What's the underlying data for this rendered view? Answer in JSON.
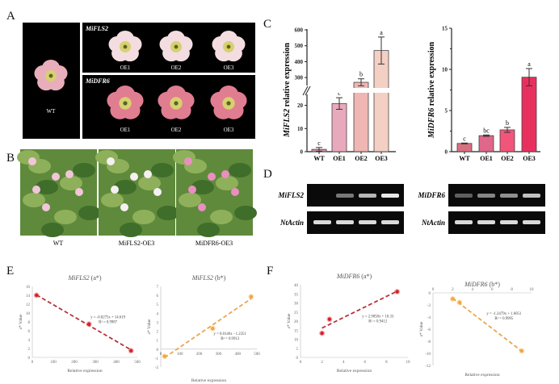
{
  "panels": {
    "A": "A",
    "B": "B",
    "C": "C",
    "D": "D",
    "E": "E",
    "F": "F"
  },
  "panel_a": {
    "wt_label": "WT",
    "fls2_title": "MiFLS2",
    "dfr6_title": "MiDFR6",
    "lines": [
      "OE1",
      "OE2",
      "OE3"
    ],
    "colors": {
      "fls2_petal": "#f3dde0",
      "dfr6_petal": "#e07d90",
      "wt_petal": "#e8aebb",
      "background": "#000000"
    }
  },
  "panel_b": {
    "labels": [
      "WT",
      "MiFLS2-OE3",
      "MiDFR6-OE3"
    ]
  },
  "panel_d": {
    "left": {
      "gene": "MiFLS2",
      "control": "NtActin",
      "band_strength": [
        0.0,
        0.45,
        0.7,
        0.9
      ]
    },
    "right": {
      "gene": "MiDFR6",
      "control": "NtActin",
      "band_strength": [
        0.35,
        0.5,
        0.55,
        0.75
      ]
    }
  },
  "chart_data": [
    {
      "id": "C-left",
      "type": "bar",
      "categories": [
        "WT",
        "OE1",
        "OE2",
        "OE3"
      ],
      "values": [
        1,
        20.8,
        270,
        470
      ],
      "errors": [
        0.8,
        2.5,
        22,
        85
      ],
      "letters": [
        "c",
        "c",
        "b",
        "a"
      ],
      "ylabel_gene": "MiFLS2",
      "ylabel_rest": " relative expression",
      "axis_break": true,
      "ylim_lower": [
        0,
        25
      ],
      "ylim_upper": [
        260,
        600
      ],
      "yticks_lower": [
        0,
        10,
        20
      ],
      "yticks_upper": [
        300,
        400,
        500,
        600
      ],
      "colors": [
        "#d98fa2",
        "#e9a9bc",
        "#efb6b3",
        "#f4cfc3"
      ]
    },
    {
      "id": "C-right",
      "type": "bar",
      "categories": [
        "WT",
        "OE1",
        "OE2",
        "OE3"
      ],
      "values": [
        1.0,
        1.95,
        2.65,
        9.05
      ],
      "errors": [
        0.05,
        0.08,
        0.3,
        1.05
      ],
      "letters": [
        "c",
        "bc",
        "b",
        "a"
      ],
      "ylabel_gene": "MiDFR6",
      "ylabel_rest": " relative expression",
      "ylim": [
        0,
        15
      ],
      "yticks": [
        0,
        5,
        10,
        15
      ],
      "colors": [
        "#d9707f",
        "#e0678a",
        "#f2557a",
        "#e8305e"
      ]
    },
    {
      "id": "E-left",
      "type": "scatter",
      "title_gene": "MiFLS2",
      "title_rest": "  (a*)",
      "x": [
        20,
        270,
        470
      ],
      "y": [
        14,
        7.5,
        1.5
      ],
      "xlim": [
        0,
        500
      ],
      "ylim": [
        0,
        16
      ],
      "xticks": [
        0,
        100,
        200,
        300,
        400,
        500
      ],
      "yticks": [
        0,
        2,
        4,
        6,
        8,
        10,
        12,
        14,
        16
      ],
      "xlabel": "Relative expression",
      "ylabel": "a* Value",
      "equation": "y = -0.0275x + 14.619",
      "r2": "R² = 0.9987",
      "fit": [
        -0.0275,
        14.619
      ],
      "xaxis_at": "bottom",
      "color": "#d6202a",
      "line_color": "#b8323a"
    },
    {
      "id": "E-right",
      "type": "scatter",
      "title_gene": "MiFLS2",
      "title_rest": " (b*)",
      "x": [
        20,
        270,
        470
      ],
      "y": [
        -0.8,
        2.3,
        5.85
      ],
      "xlim": [
        0,
        500
      ],
      "ylim": [
        -2,
        7
      ],
      "xticks": [
        0,
        100,
        200,
        300,
        400,
        500
      ],
      "yticks": [
        -2,
        -1,
        0,
        1,
        2,
        3,
        4,
        5,
        6,
        7
      ],
      "xlabel": "Relative expression",
      "ylabel": "a* Value",
      "equation": "y = 0.0146x - 1.2351",
      "r2": "R² = 0.9913",
      "fit": [
        0.0146,
        -1.2351
      ],
      "xaxis_at": "zero",
      "color": "#f0a640",
      "line_color": "#eaa550"
    },
    {
      "id": "F-left",
      "type": "scatter",
      "title_gene": "MiDFR6",
      "title_rest": "  (a*)",
      "x": [
        2,
        2.7,
        9
      ],
      "y": [
        13.3,
        21,
        36.2
      ],
      "xlim": [
        0,
        10
      ],
      "ylim": [
        0,
        40
      ],
      "xticks": [
        0,
        2,
        4,
        6,
        8,
        10
      ],
      "yticks": [
        0,
        5,
        10,
        15,
        20,
        25,
        30,
        35,
        40
      ],
      "xlabel": "Relative expression",
      "ylabel": "a* Value",
      "equation": "y = 2.9058x + 10.33",
      "r2": "R² = 0.9412",
      "fit": [
        2.9058,
        10.33
      ],
      "xaxis_at": "bottom",
      "color": "#d6202a",
      "line_color": "#b8323a"
    },
    {
      "id": "F-right",
      "type": "scatter",
      "title_gene": "MiDFR6",
      "title_rest": " (b*)",
      "x": [
        2,
        2.7,
        9
      ],
      "y": [
        -1,
        -1.6,
        -9.6
      ],
      "xlim": [
        0,
        10
      ],
      "ylim": [
        -12,
        0
      ],
      "xticks": [
        0,
        2,
        4,
        6,
        8,
        10
      ],
      "yticks": [
        -12,
        -10,
        -8,
        -6,
        -4,
        -2,
        0
      ],
      "xlabel": "Relative expression",
      "ylabel": "a* Value",
      "equation": "y = -1.2479x + 1.6051",
      "r2": "R² = 0.9995",
      "fit": [
        -1.2479,
        1.6051
      ],
      "xaxis_at": "top",
      "color": "#f0a640",
      "line_color": "#eaa550"
    }
  ]
}
